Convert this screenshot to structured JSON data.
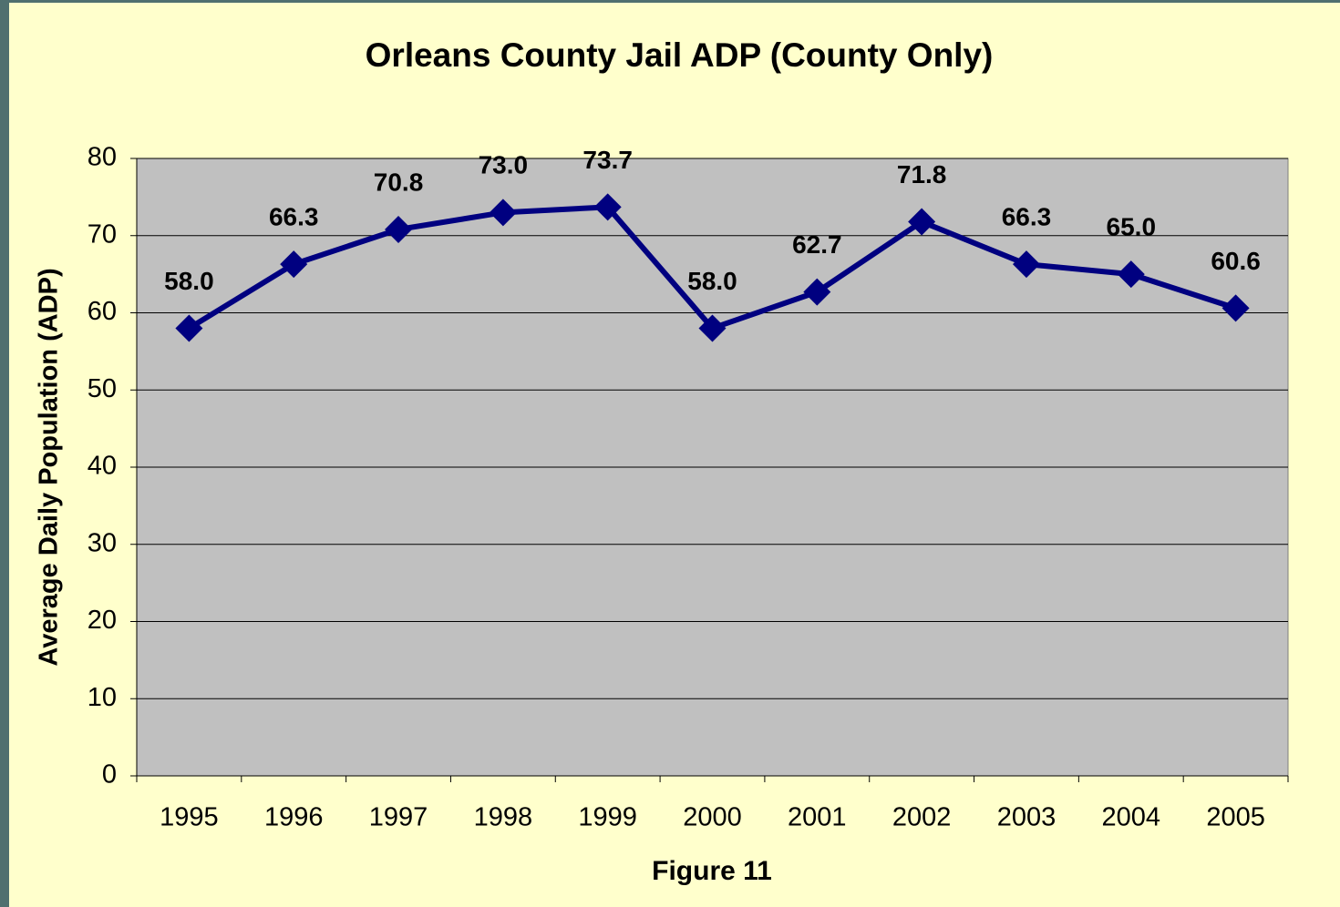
{
  "chart_data": {
    "type": "line",
    "title": "Orleans County Jail ADP (County Only)",
    "x_label": "Figure 11",
    "y_label": "Average Daily Population (ADP)",
    "categories": [
      "1995",
      "1996",
      "1997",
      "1998",
      "1999",
      "2000",
      "2001",
      "2002",
      "2003",
      "2004",
      "2005"
    ],
    "values": [
      58.0,
      66.3,
      70.8,
      73.0,
      73.7,
      58.0,
      62.7,
      71.8,
      66.3,
      65.0,
      60.6
    ],
    "value_labels": [
      "58.0",
      "66.3",
      "70.8",
      "73.0",
      "73.7",
      "58.0",
      "62.7",
      "71.8",
      "66.3",
      "65.0",
      "60.6"
    ],
    "color": "#000080",
    "ylim": [
      0,
      80
    ],
    "yticks": [
      0,
      10,
      20,
      30,
      40,
      50,
      60,
      70,
      80
    ],
    "grid": true
  }
}
